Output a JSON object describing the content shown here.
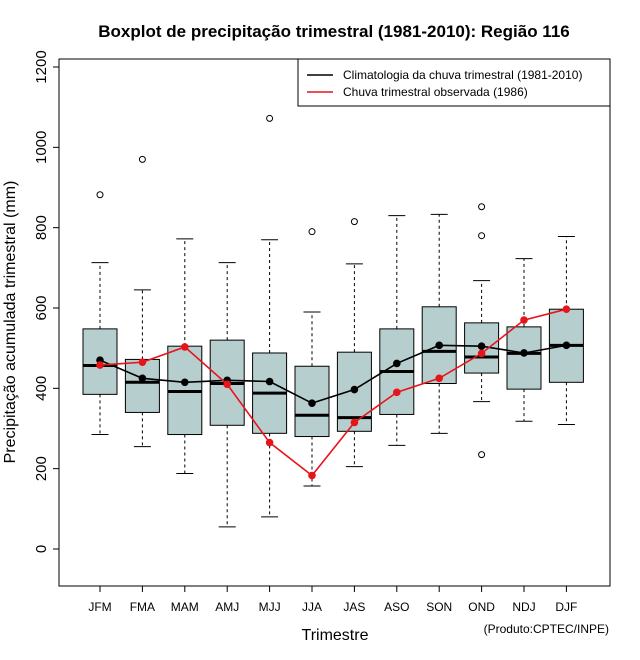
{
  "chart_data": {
    "type": "boxplot",
    "title": "Boxplot de precipitação trimestral (1981-2010): Região 116",
    "xlabel": "Trimestre",
    "ylabel": "Precipitação acumulada trimestral (mm)",
    "credit": "(Produto:CPTEC/INPE)",
    "ylim": [
      -95,
      1215
    ],
    "yticks": [
      0,
      200,
      400,
      600,
      800,
      1000,
      1200
    ],
    "categories": [
      "JFM",
      "FMA",
      "MAM",
      "AMJ",
      "MJJ",
      "JJA",
      "JAS",
      "ASO",
      "SON",
      "OND",
      "NDJ",
      "DJF"
    ],
    "boxes": [
      {
        "whisker_low": 285,
        "q1": 385,
        "median": 457,
        "q3": 548,
        "whisker_high": 713,
        "outliers": [
          882
        ]
      },
      {
        "whisker_low": 255,
        "q1": 340,
        "median": 415,
        "q3": 472,
        "whisker_high": 645,
        "outliers": [
          970
        ]
      },
      {
        "whisker_low": 188,
        "q1": 285,
        "median": 392,
        "q3": 505,
        "whisker_high": 772,
        "outliers": []
      },
      {
        "whisker_low": 55,
        "q1": 308,
        "median": 412,
        "q3": 520,
        "whisker_high": 713,
        "outliers": []
      },
      {
        "whisker_low": 80,
        "q1": 288,
        "median": 388,
        "q3": 488,
        "whisker_high": 770,
        "outliers": [
          1072
        ]
      },
      {
        "whisker_low": 157,
        "q1": 280,
        "median": 333,
        "q3": 455,
        "whisker_high": 590,
        "outliers": [
          790
        ]
      },
      {
        "whisker_low": 205,
        "q1": 293,
        "median": 327,
        "q3": 490,
        "whisker_high": 710,
        "outliers": [
          815
        ]
      },
      {
        "whisker_low": 258,
        "q1": 335,
        "median": 442,
        "q3": 548,
        "whisker_high": 830,
        "outliers": []
      },
      {
        "whisker_low": 288,
        "q1": 412,
        "median": 492,
        "q3": 603,
        "whisker_high": 833,
        "outliers": []
      },
      {
        "whisker_low": 367,
        "q1": 438,
        "median": 478,
        "q3": 563,
        "whisker_high": 668,
        "outliers": [
          852,
          780,
          235
        ]
      },
      {
        "whisker_low": 318,
        "q1": 398,
        "median": 487,
        "q3": 553,
        "whisker_high": 723,
        "outliers": []
      },
      {
        "whisker_low": 310,
        "q1": 415,
        "median": 507,
        "q3": 597,
        "whisker_high": 778,
        "outliers": []
      }
    ],
    "series": [
      {
        "name": "Climatologia da chuva trimestral (1981-2010)",
        "color": "#000000",
        "values": [
          470,
          425,
          415,
          420,
          417,
          363,
          397,
          462,
          507,
          505,
          488,
          507
        ]
      },
      {
        "name": "Chuva trimestral observada (1986)",
        "color": "#e8141b",
        "values": [
          458,
          465,
          503,
          410,
          265,
          183,
          315,
          390,
          425,
          487,
          570,
          597
        ]
      }
    ],
    "box_fill": "#b7cece",
    "legend_position": "top-right"
  }
}
